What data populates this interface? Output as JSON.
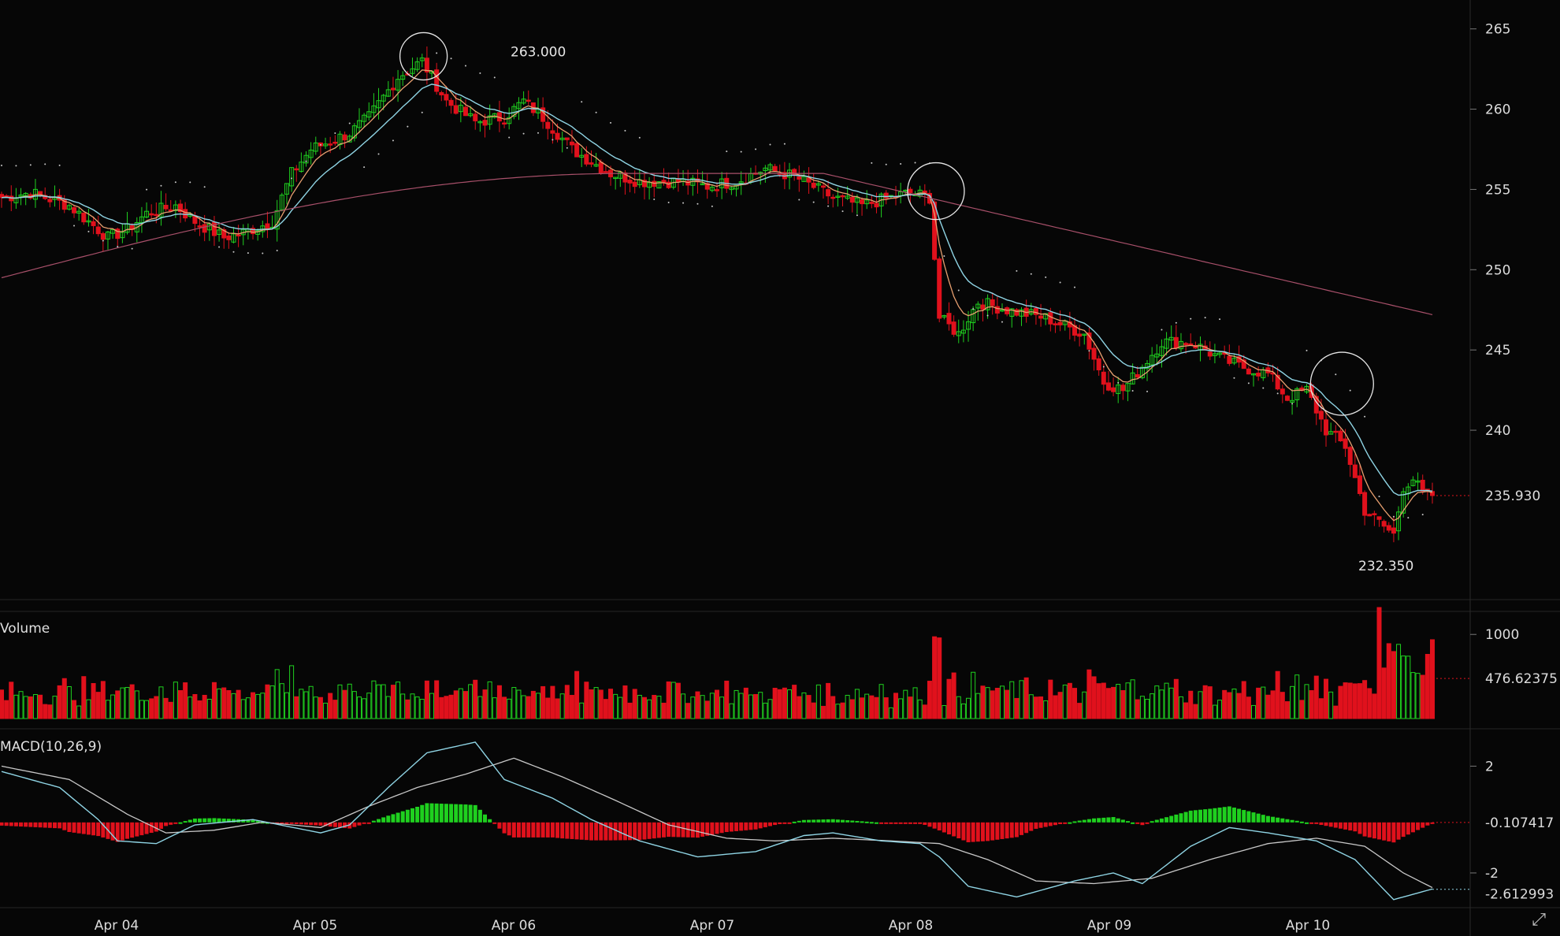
{
  "chart_data": [
    {
      "panel": "price",
      "type": "candlestick",
      "x_ticks": [
        "Apr 04",
        "Apr 05",
        "Apr 06",
        "Apr 07",
        "Apr 08",
        "Apr 09",
        "Apr 10"
      ],
      "y_ticks": [
        240,
        245,
        250,
        255,
        260,
        265
      ],
      "ylim": [
        229.5,
        266.8
      ],
      "last_price_label": "235.930",
      "annotations": [
        {
          "label": "263.000",
          "x": "Apr 06",
          "y": 263.0
        },
        {
          "label": "232.350",
          "x": "Apr 10",
          "y": 232.35
        }
      ],
      "series": [
        {
          "name": "",
          "kind": "candles",
          "anchors": [
            [
              0,
              254.5
            ],
            [
              6,
              254.8
            ],
            [
              14,
              254.0
            ],
            [
              18,
              253.0
            ],
            [
              22,
              252.0
            ],
            [
              26,
              252.5
            ],
            [
              30,
              253.5
            ],
            [
              36,
              254.0
            ],
            [
              40,
              253.0
            ],
            [
              46,
              252.0
            ],
            [
              50,
              252.3
            ],
            [
              56,
              253.0
            ],
            [
              60,
              256.0
            ],
            [
              64,
              257.5
            ],
            [
              72,
              258.5
            ],
            [
              76,
              259.5
            ],
            [
              82,
              262.0
            ],
            [
              87,
              263.0
            ],
            [
              92,
              260.5
            ],
            [
              98,
              259.2
            ],
            [
              104,
              259.5
            ],
            [
              108,
              260.5
            ],
            [
              112,
              259.5
            ],
            [
              118,
              257.5
            ],
            [
              126,
              256.0
            ],
            [
              132,
              255.5
            ],
            [
              140,
              255.5
            ],
            [
              146,
              255.2
            ],
            [
              152,
              255.5
            ],
            [
              158,
              256.3
            ],
            [
              164,
              255.8
            ],
            [
              172,
              254.5
            ],
            [
              178,
              254.0
            ],
            [
              184,
              254.5
            ],
            [
              188,
              254.8
            ],
            [
              192,
              254.5
            ],
            [
              194,
              247.0
            ],
            [
              198,
              246.0
            ],
            [
              202,
              248.0
            ],
            [
              208,
              247.5
            ],
            [
              216,
              247.0
            ],
            [
              224,
              246.0
            ],
            [
              228,
              243.0
            ],
            [
              232,
              242.5
            ],
            [
              236,
              244.0
            ],
            [
              240,
              245.5
            ],
            [
              246,
              245.5
            ],
            [
              252,
              244.5
            ],
            [
              256,
              244.0
            ],
            [
              262,
              243.5
            ],
            [
              266,
              242.0
            ],
            [
              270,
              242.5
            ],
            [
              274,
              240.0
            ],
            [
              278,
              239.0
            ],
            [
              282,
              235.0
            ],
            [
              286,
              234.0
            ],
            [
              288,
              233.5
            ],
            [
              290,
              236.5
            ],
            [
              292,
              237.0
            ],
            [
              294,
              236.0
            ],
            [
              296,
              235.93
            ]
          ]
        }
      ],
      "overlays": [
        {
          "name": "",
          "color": "#e8a070"
        },
        {
          "name": "",
          "color": "#8fd4e4"
        },
        {
          "name": "",
          "color": "#a8506a"
        },
        {
          "name": "",
          "color": "#c8c8c8"
        }
      ]
    },
    {
      "panel": "volume",
      "type": "bar",
      "title": "Volume",
      "y_ticks": [
        1000
      ],
      "ylim": [
        0,
        1330
      ],
      "last_value_label": "476.62375"
    },
    {
      "panel": "macd",
      "type": "line",
      "title": "MACD(10,26,9)",
      "y_ticks": [
        2,
        -2
      ],
      "ylim": [
        -3.3,
        3.4
      ],
      "labels": {
        "zero": "-0.107417",
        "last": "-2.612993"
      },
      "macd_anchors": [
        [
          0,
          1.8
        ],
        [
          12,
          1.2
        ],
        [
          20,
          0.0
        ],
        [
          24,
          -0.8
        ],
        [
          32,
          -0.9
        ],
        [
          40,
          -0.2
        ],
        [
          52,
          0.0
        ],
        [
          66,
          -0.5
        ],
        [
          72,
          -0.2
        ],
        [
          80,
          1.2
        ],
        [
          88,
          2.5
        ],
        [
          98,
          2.9
        ],
        [
          104,
          1.5
        ],
        [
          114,
          0.8
        ],
        [
          122,
          0.0
        ],
        [
          132,
          -0.8
        ],
        [
          144,
          -1.4
        ],
        [
          156,
          -1.2
        ],
        [
          166,
          -0.6
        ],
        [
          172,
          -0.5
        ],
        [
          182,
          -0.8
        ],
        [
          190,
          -0.9
        ],
        [
          194,
          -1.4
        ],
        [
          200,
          -2.5
        ],
        [
          210,
          -2.9
        ],
        [
          222,
          -2.3
        ],
        [
          230,
          -2.0
        ],
        [
          236,
          -2.4
        ],
        [
          246,
          -1.0
        ],
        [
          254,
          -0.3
        ],
        [
          262,
          -0.5
        ],
        [
          272,
          -0.8
        ],
        [
          280,
          -1.5
        ],
        [
          288,
          -3.0
        ],
        [
          296,
          -2.6
        ]
      ],
      "signal_anchors": [
        [
          0,
          2.0
        ],
        [
          14,
          1.5
        ],
        [
          26,
          0.2
        ],
        [
          34,
          -0.5
        ],
        [
          44,
          -0.4
        ],
        [
          54,
          -0.1
        ],
        [
          66,
          -0.3
        ],
        [
          76,
          0.5
        ],
        [
          86,
          1.2
        ],
        [
          96,
          1.7
        ],
        [
          106,
          2.3
        ],
        [
          116,
          1.6
        ],
        [
          126,
          0.8
        ],
        [
          138,
          -0.2
        ],
        [
          150,
          -0.7
        ],
        [
          160,
          -0.8
        ],
        [
          172,
          -0.7
        ],
        [
          184,
          -0.8
        ],
        [
          194,
          -0.9
        ],
        [
          204,
          -1.5
        ],
        [
          214,
          -2.3
        ],
        [
          226,
          -2.4
        ],
        [
          238,
          -2.2
        ],
        [
          250,
          -1.5
        ],
        [
          262,
          -0.9
        ],
        [
          272,
          -0.7
        ],
        [
          282,
          -1.0
        ],
        [
          290,
          -2.0
        ],
        [
          296,
          -2.55
        ]
      ],
      "colors": {
        "macd": "#8fd4e4",
        "signal": "#c8c8c8",
        "up": "#1fd01f",
        "down": "#e0111c"
      }
    }
  ]
}
